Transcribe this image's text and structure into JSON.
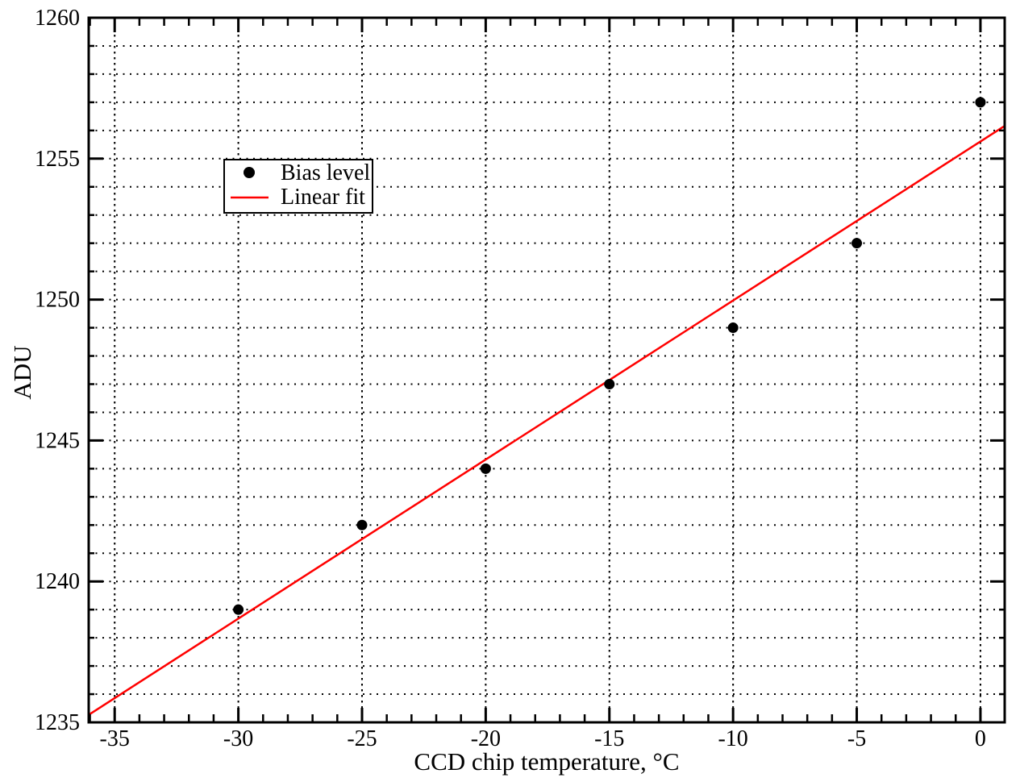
{
  "figure": {
    "background": "#ffffff",
    "foreground": "#000000"
  },
  "chart_data": {
    "type": "scatter",
    "title": "",
    "xlabel": "CCD chip temperature, °C",
    "ylabel": "ADU",
    "xlim": [
      -36.05,
      0.98
    ],
    "ylim": [
      1235,
      1260
    ],
    "x_major_ticks": [
      -35,
      -30,
      -25,
      -20,
      -15,
      -10,
      -5,
      0
    ],
    "x_major_tick_labels": [
      "-35",
      "-30",
      "-25",
      "-20",
      "-15",
      "-10",
      "-5",
      "0"
    ],
    "x_minor_tick_step": 1,
    "y_major_ticks": [
      1235,
      1240,
      1245,
      1250,
      1255,
      1260
    ],
    "y_major_tick_labels": [
      "1235",
      "1240",
      "1245",
      "1250",
      "1255",
      "1260"
    ],
    "y_minor_tick_step": 1,
    "grid": {
      "style": "dotted",
      "color": "#000000",
      "vertical_lines_at": "x-major-ticks-every-5-C",
      "horizontal_lines_at": "every-1-ADU"
    },
    "legend": {
      "position": "inset-upper-left",
      "border": true,
      "background": "#ffffff"
    },
    "series": [
      {
        "name": "Bias level",
        "type": "scatter",
        "marker": "filled-circle",
        "color": "#000000",
        "x": [
          -30,
          -25,
          -20,
          -15,
          -10,
          -5,
          0
        ],
        "y": [
          1239,
          1242,
          1244,
          1247,
          1249,
          1252,
          1257
        ]
      },
      {
        "name": "Linear fit",
        "type": "line",
        "color": "#ff0000",
        "slope": 0.5643,
        "intercept": 1255.61
      }
    ]
  }
}
